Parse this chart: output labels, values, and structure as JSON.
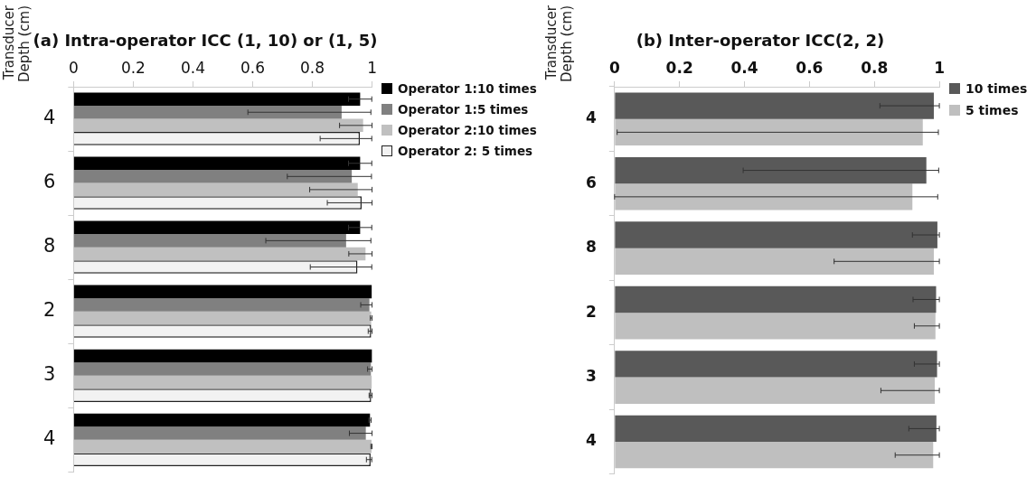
{
  "chart_data": [
    {
      "type": "bar",
      "orientation": "horizontal",
      "title": "(a) Intra-operator ICC (1, 10) or (1, 5)",
      "ylabel": "Transducer Depth (cm)",
      "categories": [
        "4",
        "6",
        "8",
        "2",
        "3",
        "4"
      ],
      "xlim": [
        0,
        1
      ],
      "xticks": [
        0,
        0.2,
        0.4,
        0.6,
        0.8,
        1
      ],
      "grid": false,
      "legend": "top right",
      "series": [
        {
          "name": "Operator 1:10 times",
          "color": "#000000",
          "values": [
            0.96,
            0.96,
            0.96,
            0.999,
            1.0,
            0.993
          ],
          "errors": [
            0.039,
            0.039,
            0.039,
            null,
            null,
            0.004
          ]
        },
        {
          "name": "Operator 1:5 times",
          "color": "#808080",
          "values": [
            0.898,
            0.932,
            0.913,
            0.991,
            0.996,
            0.979
          ],
          "errors": [
            [
              0.584,
              0.996
            ],
            [
              0.716,
              0.998
            ],
            [
              0.644,
              0.996
            ],
            [
              0.962,
              1.0
            ],
            [
              0.985,
              1.0
            ],
            [
              0.924,
              1.0
            ]
          ]
        },
        {
          "name": "Operator 2:10 times",
          "color": "#c0c0c0",
          "values": [
            0.97,
            0.952,
            0.978,
            0.997,
            0.999,
            0.998
          ],
          "errors": [
            [
              0.891,
              1.0
            ],
            [
              0.791,
              1.0
            ],
            [
              0.922,
              1.0
            ],
            0.003,
            null,
            0.002
          ]
        },
        {
          "name": "Operator 2: 5 times",
          "color": "#f2f2f2",
          "values": [
            0.959,
            0.965,
            0.951,
            0.997,
            0.997,
            0.995
          ],
          "errors": [
            [
              0.826,
              0.999
            ],
            [
              0.85,
              1.0
            ],
            [
              0.793,
              0.999
            ],
            [
              0.987,
              1.0
            ],
            [
              0.99,
              1.0
            ],
            [
              0.981,
              0.999
            ]
          ]
        }
      ]
    },
    {
      "type": "bar",
      "orientation": "horizontal",
      "title": "(b) Inter-operator ICC(2, 2)",
      "ylabel": "Transducer Depth (cm)",
      "categories": [
        "4",
        "6",
        "8",
        "2",
        "3",
        "4"
      ],
      "xlim": [
        0,
        1
      ],
      "xticks": [
        0,
        0.2,
        0.4,
        0.6,
        0.8,
        1
      ],
      "grid": false,
      "legend": "top right",
      "series": [
        {
          "name": "10 times",
          "color": "#595959",
          "values": [
            0.983,
            0.96,
            0.994,
            0.99,
            0.993,
            0.991
          ],
          "errors": [
            [
              0.817,
              1.0
            ],
            [
              0.396,
              0.998
            ],
            [
              0.917,
              1.0
            ],
            [
              0.919,
              1.0
            ],
            [
              0.923,
              1.0
            ],
            [
              0.906,
              1.0
            ]
          ]
        },
        {
          "name": "5 times",
          "color": "#bfbfbf",
          "values": [
            0.949,
            0.917,
            0.983,
            0.988,
            0.986,
            0.981
          ],
          "errors": [
            [
              0.008,
              0.997
            ],
            [
              0.0,
              0.995
            ],
            [
              0.676,
              1.0
            ],
            [
              0.923,
              1.0
            ],
            [
              0.82,
              1.0
            ],
            [
              0.864,
              1.0
            ]
          ]
        }
      ]
    }
  ]
}
